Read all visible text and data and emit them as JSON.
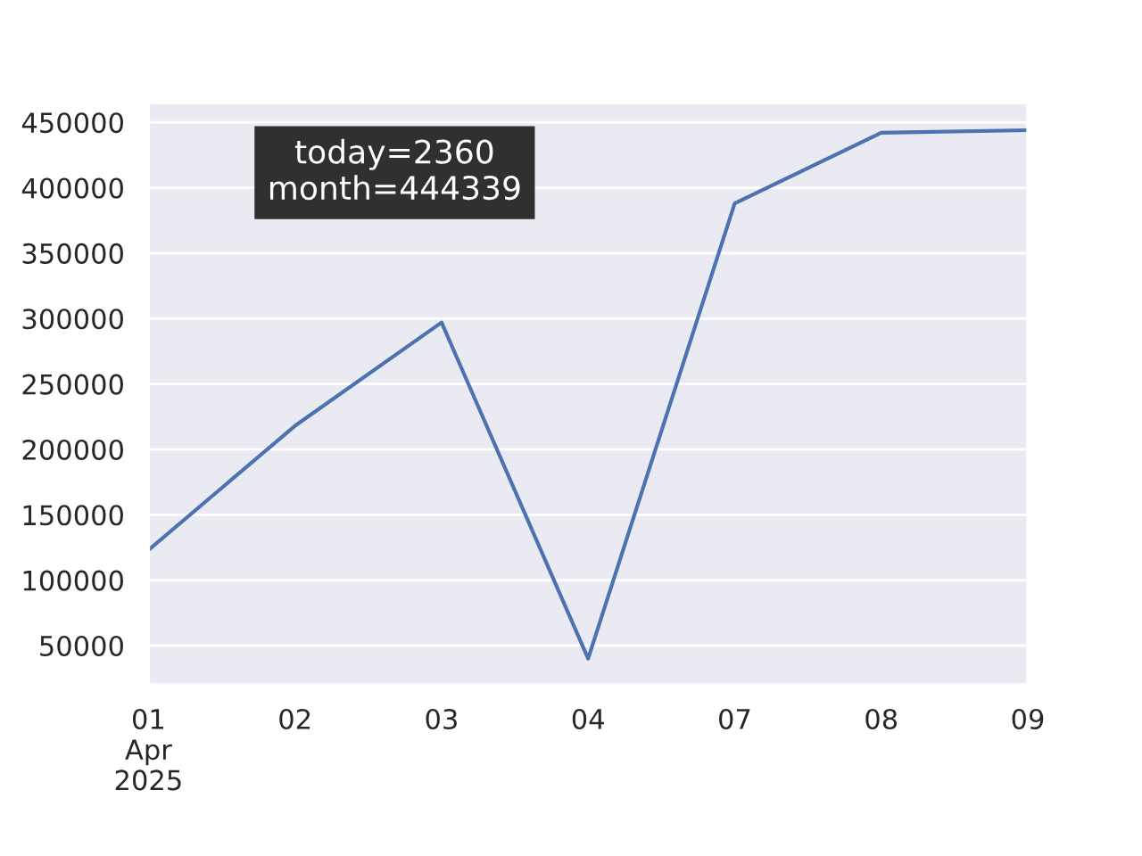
{
  "chart_data": {
    "type": "line",
    "categories": [
      "01\nApr\n2025",
      "02",
      "03",
      "04",
      "07",
      "08",
      "09"
    ],
    "series": [
      {
        "color": "#4c72b0",
        "values": [
          123000,
          218000,
          297000,
          40000,
          388000,
          442000,
          444000
        ]
      }
    ],
    "ylim": [
      20000,
      465000
    ],
    "yticks": [
      50000,
      100000,
      150000,
      200000,
      250000,
      300000,
      350000,
      400000,
      450000
    ],
    "grid": "y",
    "annotations": [
      "today=2360\nmonth=444339"
    ]
  }
}
